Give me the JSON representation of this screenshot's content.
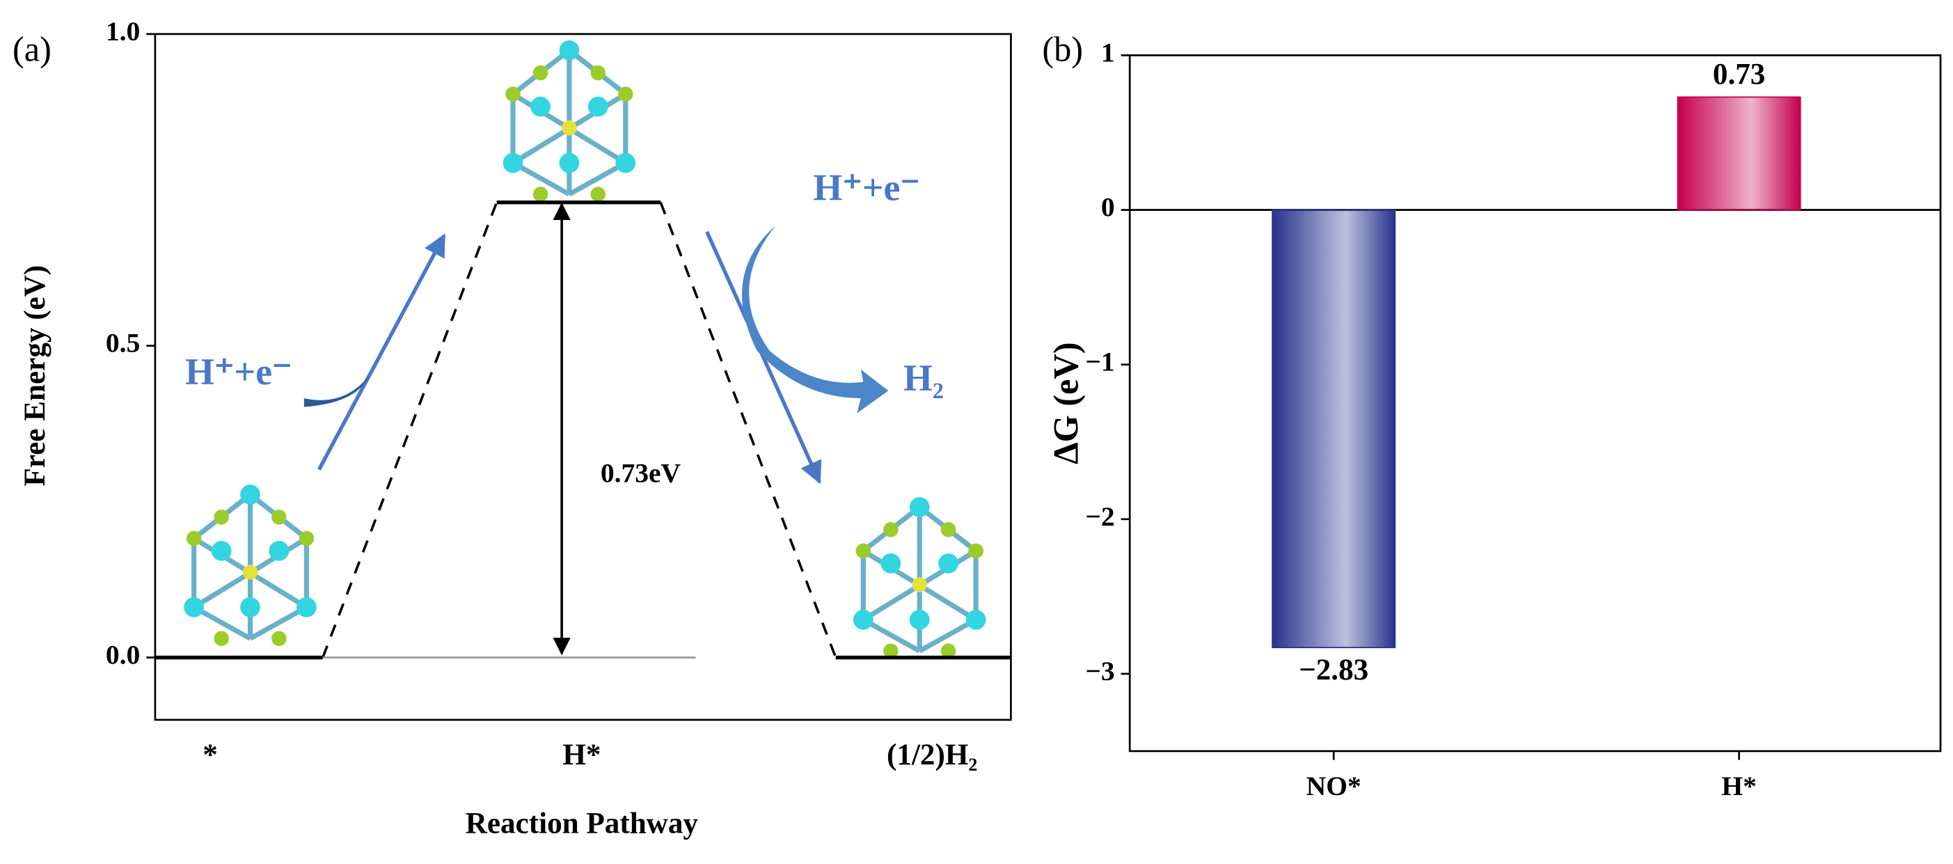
{
  "chart_data": [
    {
      "type": "energy",
      "panel": "(a)",
      "ylabel": "Free Energy (eV)",
      "xlabel": "Reaction Pathway",
      "categories": [
        "*",
        "H*",
        "(1/2)H₂"
      ],
      "values": [
        0,
        0.73,
        0
      ],
      "color": "#000000",
      "ylim": [
        -0.1,
        1.0
      ],
      "yticks": [
        {
          "value": 0,
          "label": "0.0"
        },
        {
          "value": 0.5,
          "label": "0.5"
        },
        {
          "value": 1,
          "label": "1.0"
        }
      ],
      "annotations": [
        "0.73eV",
        "H⁺+e⁻",
        "H⁺+e⁻",
        "H₂"
      ]
    },
    {
      "type": "bar",
      "panel": "(b)",
      "ylabel": "ΔG (eV)",
      "categories": [
        "NO*",
        "H*"
      ],
      "values": [
        -2.83,
        0.73
      ],
      "value_labels": [
        "−2.83",
        "0.73"
      ],
      "colors": [
        "#28338c",
        "#c4004c"
      ],
      "ylim": [
        -3.5,
        1
      ],
      "yticks": [
        {
          "value": -3,
          "label": "−3"
        },
        {
          "value": -2,
          "label": "−2"
        },
        {
          "value": -1,
          "label": "−1"
        },
        0,
        1
      ]
    }
  ]
}
